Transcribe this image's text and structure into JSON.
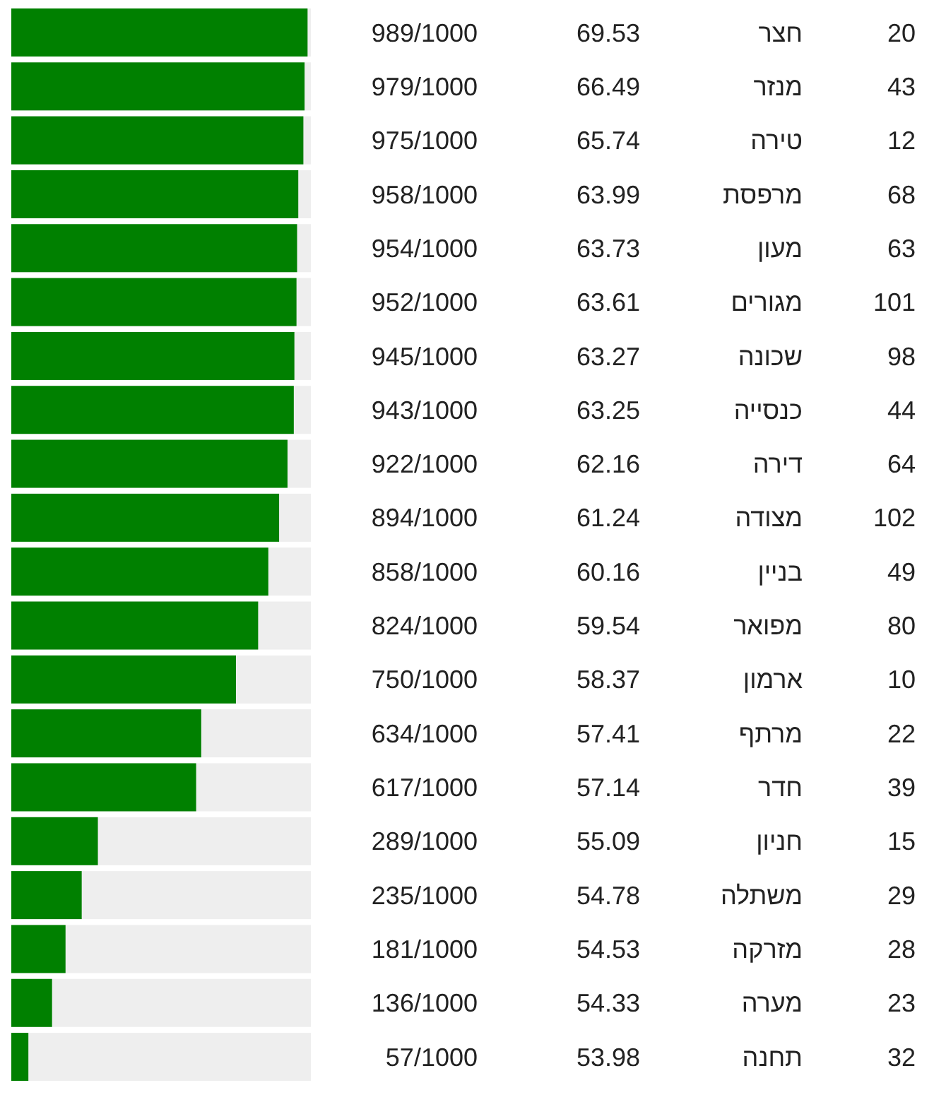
{
  "chart_data": {
    "type": "bar",
    "orientation": "horizontal",
    "color": "#008000",
    "xlim": [
      0,
      1000
    ],
    "tick_labels": "y",
    "categories": [
      "חצר",
      "מנזר",
      "טירה",
      "מרפסת",
      "מעון",
      "מגורים",
      "שכונה",
      "כנסייה",
      "דירה",
      "מצודה",
      "בניין",
      "מפואר",
      "ארמון",
      "מרתף",
      "חדר",
      "חניון",
      "משתלה",
      "מזרקה",
      "מערה",
      "תחנה"
    ],
    "values": [
      989,
      979,
      975,
      958,
      954,
      952,
      945,
      943,
      922,
      894,
      858,
      824,
      750,
      634,
      617,
      289,
      235,
      181,
      136,
      57
    ],
    "value_labels": [
      "989/1000",
      "979/1000",
      "975/1000",
      "958/1000",
      "954/1000",
      "952/1000",
      "945/1000",
      "943/1000",
      "922/1000",
      "894/1000",
      "858/1000",
      "824/1000",
      "750/1000",
      "634/1000",
      "617/1000",
      "289/1000",
      "235/1000",
      "181/1000",
      "136/1000",
      "57/1000"
    ],
    "annotations": [
      "69.53",
      "20",
      "66.49",
      "43",
      "65.74",
      "12",
      "63.99",
      "68",
      "63.73",
      "63",
      "63.61",
      "101",
      "63.27",
      "98",
      "63.25",
      "44",
      "62.16",
      "64",
      "61.24",
      "102",
      "60.16",
      "49",
      "59.54",
      "80",
      "58.37",
      "10",
      "57.41",
      "22",
      "57.14",
      "39",
      "55.09",
      "15",
      "54.78",
      "29",
      "54.53",
      "28",
      "54.33",
      "23",
      "53.98",
      "32"
    ]
  }
}
